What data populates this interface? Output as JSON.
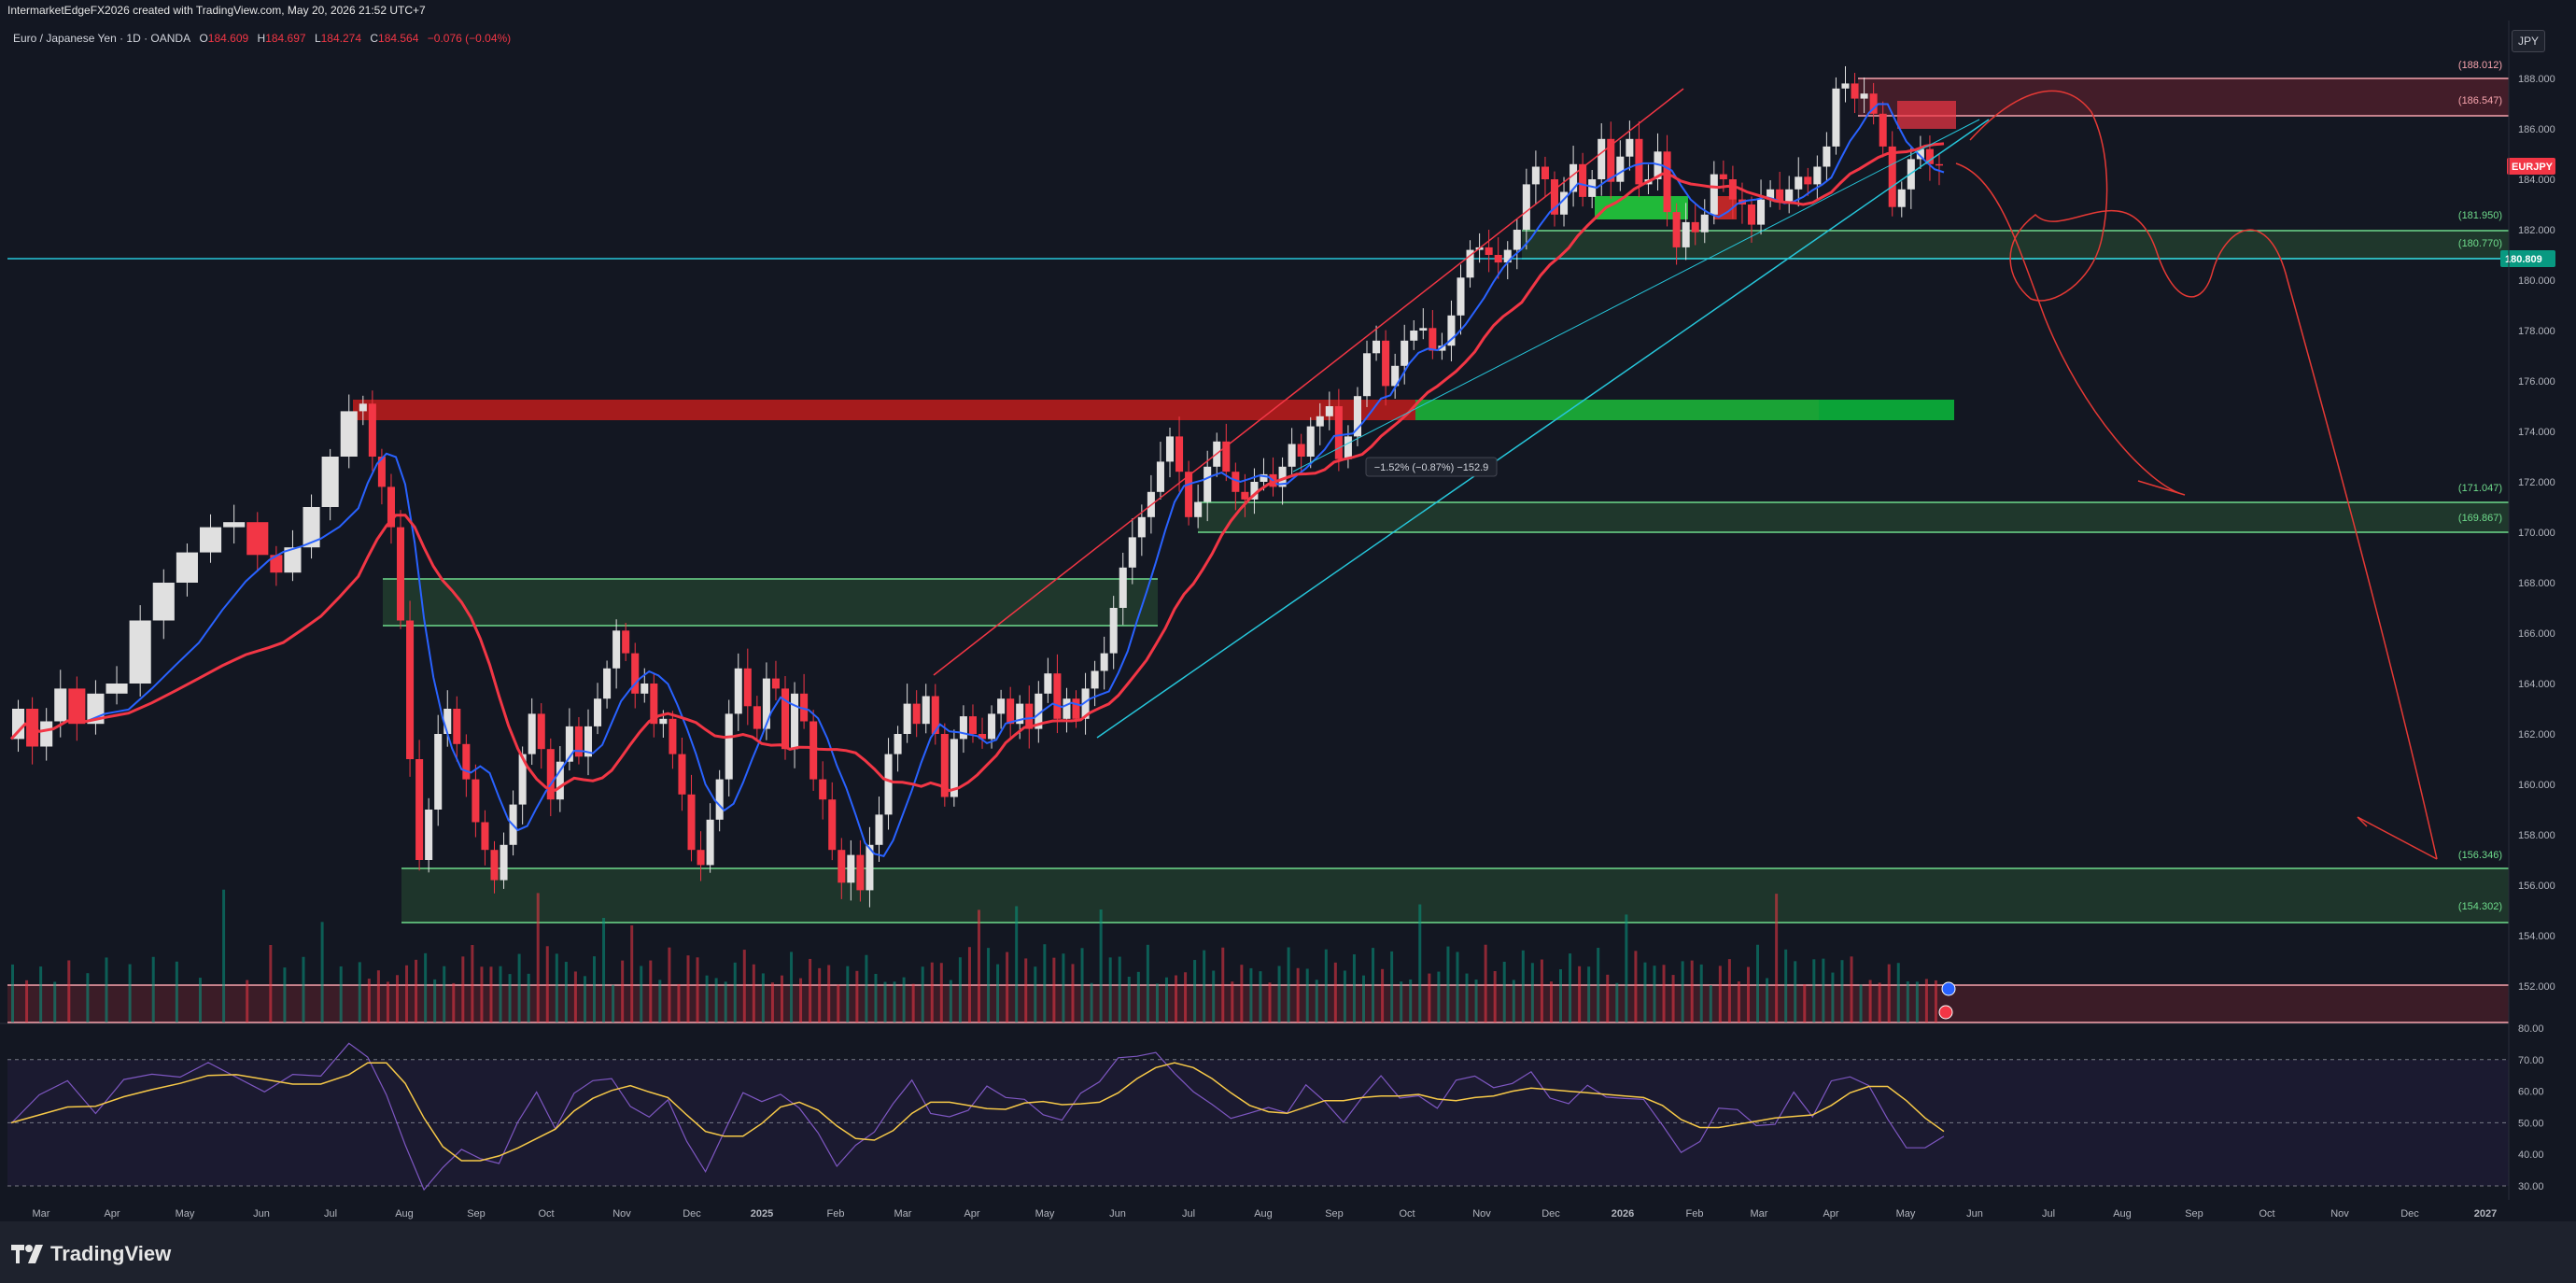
{
  "credit": "IntermarketEdgeFX2026 created with TradingView.com, May 20, 2026 21:52 UTC+7",
  "legend": {
    "symbol": "Euro / Japanese Yen · 1D · OANDA",
    "open_label": "O",
    "open": "184.609",
    "high_label": "H",
    "high": "184.697",
    "low_label": "L",
    "low": "184.274",
    "close_label": "C",
    "close": "184.564",
    "change": "−0.076 (−0.04%)"
  },
  "currency_button": "JPY",
  "brand": "TradingView",
  "colors": {
    "background": "#131722",
    "up": "#089981",
    "down": "#f23645",
    "ma_fast": "#2962ff",
    "ma_slow": "#f23645",
    "rsi": "#7e57c2",
    "rsi_ma": "#f7c948",
    "price_tag": "#f23645",
    "line_tag": "#089981"
  },
  "chart_data": {
    "type": "candlestick",
    "timeframe": "1D",
    "y_ticks": [
      "188.000",
      "186.000",
      "184.000",
      "182.000",
      "180.000",
      "178.000",
      "176.000",
      "174.000",
      "172.000",
      "170.000",
      "168.000",
      "166.000",
      "164.000",
      "162.000",
      "160.000",
      "158.000",
      "156.000",
      "154.000",
      "152.000"
    ],
    "ylim": [
      150.5,
      188.7
    ],
    "x_ticks": [
      "Mar",
      "Apr",
      "May",
      "Jun",
      "Jul",
      "Aug",
      "Sep",
      "Oct",
      "Nov",
      "Dec",
      "2025",
      "Feb",
      "Mar",
      "Apr",
      "May",
      "Jun",
      "Jul",
      "Aug",
      "Sep",
      "Oct",
      "Nov",
      "Dec",
      "2026",
      "Feb",
      "Mar",
      "Apr",
      "May",
      "Jun",
      "Jul",
      "Aug",
      "Sep",
      "Oct",
      "Nov",
      "Dec",
      "2027"
    ],
    "price_path": [
      [
        0,
        161.8
      ],
      [
        3,
        163.0
      ],
      [
        6,
        161.5
      ],
      [
        9,
        162.5
      ],
      [
        12,
        163.8
      ],
      [
        16,
        162.4
      ],
      [
        20,
        163.6
      ],
      [
        25,
        164.0
      ],
      [
        30,
        166.5
      ],
      [
        35,
        168.0
      ],
      [
        40,
        169.2
      ],
      [
        45,
        170.2
      ],
      [
        50,
        170.4
      ],
      [
        55,
        169.1
      ],
      [
        58,
        168.4
      ],
      [
        62,
        169.4
      ],
      [
        66,
        171.0
      ],
      [
        70,
        173.0
      ],
      [
        74,
        174.8
      ],
      [
        76,
        175.1
      ],
      [
        78,
        173.0
      ],
      [
        80,
        171.8
      ],
      [
        82,
        170.2
      ],
      [
        84,
        166.5
      ],
      [
        86,
        161.0
      ],
      [
        88,
        157.0
      ],
      [
        90,
        159.0
      ],
      [
        92,
        162.0
      ],
      [
        94,
        163.0
      ],
      [
        96,
        161.6
      ],
      [
        98,
        160.2
      ],
      [
        100,
        158.5
      ],
      [
        102,
        157.4
      ],
      [
        104,
        156.2
      ],
      [
        106,
        157.6
      ],
      [
        108,
        159.2
      ],
      [
        110,
        161.2
      ],
      [
        112,
        162.8
      ],
      [
        114,
        161.4
      ],
      [
        116,
        159.4
      ],
      [
        118,
        160.9
      ],
      [
        120,
        162.3
      ],
      [
        122,
        161.1
      ],
      [
        124,
        162.3
      ],
      [
        126,
        163.4
      ],
      [
        128,
        164.6
      ],
      [
        130,
        166.1
      ],
      [
        132,
        165.2
      ],
      [
        134,
        163.6
      ],
      [
        136,
        164.0
      ],
      [
        138,
        162.4
      ],
      [
        140,
        162.6
      ],
      [
        142,
        161.2
      ],
      [
        144,
        159.6
      ],
      [
        146,
        157.4
      ],
      [
        148,
        156.8
      ],
      [
        150,
        158.6
      ],
      [
        152,
        160.2
      ],
      [
        154,
        162.8
      ],
      [
        156,
        164.6
      ],
      [
        158,
        163.1
      ],
      [
        160,
        162.2
      ],
      [
        162,
        164.2
      ],
      [
        164,
        163.8
      ],
      [
        166,
        161.4
      ],
      [
        168,
        163.6
      ],
      [
        170,
        162.5
      ],
      [
        172,
        160.2
      ],
      [
        174,
        159.4
      ],
      [
        176,
        157.4
      ],
      [
        178,
        156.1
      ],
      [
        180,
        157.2
      ],
      [
        182,
        155.8
      ],
      [
        184,
        157.6
      ],
      [
        186,
        158.8
      ],
      [
        188,
        161.2
      ],
      [
        190,
        162.0
      ],
      [
        192,
        163.2
      ],
      [
        194,
        162.4
      ],
      [
        196,
        163.5
      ],
      [
        198,
        162.0
      ],
      [
        200,
        159.5
      ],
      [
        202,
        161.8
      ],
      [
        204,
        162.7
      ],
      [
        206,
        162.0
      ],
      [
        208,
        161.8
      ],
      [
        210,
        162.8
      ],
      [
        212,
        163.4
      ],
      [
        214,
        162.4
      ],
      [
        216,
        163.2
      ],
      [
        218,
        162.2
      ],
      [
        220,
        163.6
      ],
      [
        222,
        164.4
      ],
      [
        224,
        162.6
      ],
      [
        226,
        163.4
      ],
      [
        228,
        162.6
      ],
      [
        230,
        163.8
      ],
      [
        232,
        164.5
      ],
      [
        234,
        165.2
      ],
      [
        236,
        167.0
      ],
      [
        238,
        168.6
      ],
      [
        240,
        169.8
      ],
      [
        242,
        170.6
      ],
      [
        244,
        171.6
      ],
      [
        246,
        172.8
      ],
      [
        248,
        173.8
      ],
      [
        250,
        172.4
      ],
      [
        252,
        170.6
      ],
      [
        254,
        171.2
      ],
      [
        256,
        172.6
      ],
      [
        258,
        173.6
      ],
      [
        260,
        172.4
      ],
      [
        262,
        171.6
      ],
      [
        264,
        171.3
      ],
      [
        266,
        172.0
      ],
      [
        268,
        172.3
      ],
      [
        270,
        171.8
      ],
      [
        272,
        172.6
      ],
      [
        274,
        173.5
      ],
      [
        276,
        173.0
      ],
      [
        278,
        174.2
      ],
      [
        280,
        174.6
      ],
      [
        282,
        175.0
      ],
      [
        284,
        172.9
      ],
      [
        286,
        173.8
      ],
      [
        288,
        175.4
      ],
      [
        290,
        177.1
      ],
      [
        292,
        177.6
      ],
      [
        294,
        175.8
      ],
      [
        296,
        176.6
      ],
      [
        298,
        177.6
      ],
      [
        300,
        178.0
      ],
      [
        302,
        178.1
      ],
      [
        304,
        177.2
      ],
      [
        306,
        177.4
      ],
      [
        308,
        178.6
      ],
      [
        310,
        180.1
      ],
      [
        312,
        181.2
      ],
      [
        314,
        181.3
      ],
      [
        316,
        181.0
      ],
      [
        318,
        180.7
      ],
      [
        320,
        181.2
      ],
      [
        322,
        182.0
      ],
      [
        324,
        183.8
      ],
      [
        326,
        184.5
      ],
      [
        328,
        184.0
      ],
      [
        330,
        182.6
      ],
      [
        332,
        183.5
      ],
      [
        334,
        184.6
      ],
      [
        336,
        183.3
      ],
      [
        338,
        184.0
      ],
      [
        340,
        185.6
      ],
      [
        342,
        183.9
      ],
      [
        344,
        184.9
      ],
      [
        346,
        185.6
      ],
      [
        348,
        183.8
      ],
      [
        350,
        184.0
      ],
      [
        352,
        185.1
      ],
      [
        354,
        182.7
      ],
      [
        356,
        181.3
      ],
      [
        358,
        182.3
      ],
      [
        360,
        181.9
      ],
      [
        362,
        182.6
      ],
      [
        364,
        184.2
      ],
      [
        366,
        184.0
      ],
      [
        368,
        183.2
      ],
      [
        370,
        183.0
      ],
      [
        372,
        182.2
      ],
      [
        374,
        183.2
      ],
      [
        376,
        183.6
      ],
      [
        378,
        183.1
      ],
      [
        380,
        183.6
      ],
      [
        382,
        184.1
      ],
      [
        384,
        183.8
      ],
      [
        386,
        184.5
      ],
      [
        388,
        185.3
      ],
      [
        390,
        187.6
      ],
      [
        392,
        187.8
      ],
      [
        394,
        187.2
      ],
      [
        396,
        187.4
      ],
      [
        398,
        186.6
      ],
      [
        400,
        185.3
      ],
      [
        402,
        182.9
      ],
      [
        404,
        183.6
      ],
      [
        406,
        184.8
      ],
      [
        408,
        185.2
      ],
      [
        410,
        184.6
      ],
      [
        412,
        184.564
      ]
    ],
    "last_price_tag": "EURJPY",
    "horizontal_line": "180.809",
    "zone_labels": [
      "(188.012)",
      "(186.547)",
      "(181.950)",
      "(180.770)",
      "(171.047)",
      "(169.867)",
      "(156.346)",
      "(154.302)"
    ],
    "measure_label": "−1.52% (−0.87%) −152.9",
    "rsi": {
      "y_ticks": [
        "80.00",
        "70.00",
        "60.00",
        "50.00",
        "40.00",
        "30.00"
      ],
      "ylim": [
        28,
        81
      ],
      "levels": [
        70,
        50,
        30
      ],
      "path": [
        [
          0,
          50
        ],
        [
          6,
          55
        ],
        [
          12,
          60
        ],
        [
          18,
          56
        ],
        [
          24,
          62
        ],
        [
          30,
          64
        ],
        [
          36,
          68
        ],
        [
          42,
          66
        ],
        [
          48,
          63
        ],
        [
          54,
          58
        ],
        [
          60,
          62
        ],
        [
          66,
          66
        ],
        [
          72,
          75
        ],
        [
          76,
          73
        ],
        [
          80,
          62
        ],
        [
          84,
          40
        ],
        [
          88,
          31
        ],
        [
          92,
          37
        ],
        [
          96,
          44
        ],
        [
          100,
          40
        ],
        [
          104,
          37
        ],
        [
          108,
          47
        ],
        [
          112,
          56
        ],
        [
          116,
          52
        ],
        [
          120,
          60
        ],
        [
          124,
          63
        ],
        [
          128,
          66
        ],
        [
          132,
          58
        ],
        [
          136,
          52
        ],
        [
          140,
          56
        ],
        [
          144,
          44
        ],
        [
          148,
          37
        ],
        [
          152,
          46
        ],
        [
          156,
          56
        ],
        [
          160,
          60
        ],
        [
          164,
          58
        ],
        [
          168,
          52
        ],
        [
          172,
          46
        ],
        [
          176,
          40
        ],
        [
          180,
          42
        ],
        [
          184,
          50
        ],
        [
          188,
          58
        ],
        [
          192,
          62
        ],
        [
          196,
          56
        ],
        [
          200,
          50
        ],
        [
          204,
          54
        ],
        [
          208,
          58
        ],
        [
          212,
          55
        ],
        [
          216,
          58
        ],
        [
          220,
          56
        ],
        [
          224,
          54
        ],
        [
          228,
          56
        ],
        [
          232,
          60
        ],
        [
          236,
          68
        ],
        [
          240,
          72
        ],
        [
          244,
          70
        ],
        [
          248,
          66
        ],
        [
          252,
          62
        ],
        [
          256,
          58
        ],
        [
          260,
          52
        ],
        [
          264,
          50
        ],
        [
          268,
          54
        ],
        [
          272,
          56
        ],
        [
          276,
          60
        ],
        [
          280,
          58
        ],
        [
          284,
          54
        ],
        [
          288,
          60
        ],
        [
          292,
          62
        ],
        [
          296,
          58
        ],
        [
          300,
          56
        ],
        [
          304,
          54
        ],
        [
          308,
          60
        ],
        [
          312,
          62
        ],
        [
          316,
          58
        ],
        [
          320,
          60
        ],
        [
          324,
          64
        ],
        [
          328,
          60
        ],
        [
          332,
          56
        ],
        [
          336,
          58
        ],
        [
          340,
          62
        ],
        [
          344,
          58
        ],
        [
          348,
          54
        ],
        [
          352,
          48
        ],
        [
          356,
          44
        ],
        [
          360,
          48
        ],
        [
          364,
          54
        ],
        [
          368,
          52
        ],
        [
          372,
          48
        ],
        [
          376,
          52
        ],
        [
          380,
          56
        ],
        [
          384,
          54
        ],
        [
          388,
          60
        ],
        [
          392,
          68
        ],
        [
          396,
          64
        ],
        [
          400,
          54
        ],
        [
          404,
          42
        ],
        [
          408,
          46
        ],
        [
          412,
          47
        ]
      ]
    }
  }
}
